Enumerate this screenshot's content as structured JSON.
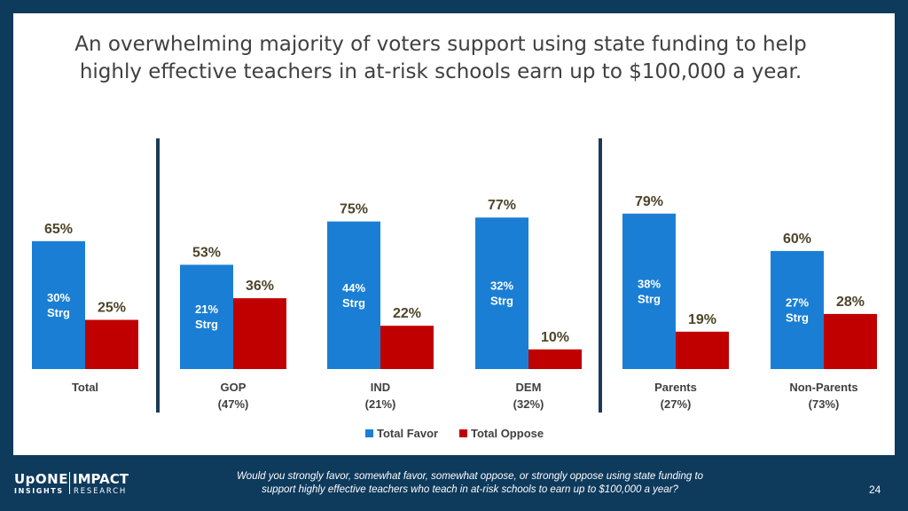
{
  "header": {
    "title_line1": "An overwhelming majority of voters support using state funding to help",
    "title_line2": "highly effective teachers in at-risk schools earn up to $100,000 a year."
  },
  "footer": {
    "question_line1": "Would you strongly favor, somewhat favor, somewhat oppose, or strongly oppose using state funding to",
    "question_line2": "support highly effective teachers who teach in at-risk schools to earn up to $100,000 a year?",
    "page_number": "24",
    "logo_left_main": "UpONE",
    "logo_left_sub": "INSIGHTS",
    "logo_right_main": "IMPACT",
    "logo_right_sub": "RESEARCH"
  },
  "colors": {
    "favor": "#1a7fd4",
    "oppose": "#c00000",
    "divider": "#1b3a57",
    "value_text": "#4d4429",
    "category_text": "#404040"
  },
  "chart_data": {
    "type": "bar",
    "categories": [
      {
        "label": "Total",
        "sublabel": ""
      },
      {
        "label": "GOP",
        "sublabel": "(47%)"
      },
      {
        "label": "IND",
        "sublabel": "(21%)"
      },
      {
        "label": "DEM",
        "sublabel": "(32%)"
      },
      {
        "label": "Parents",
        "sublabel": "(27%)"
      },
      {
        "label": "Non-Parents",
        "sublabel": "(73%)"
      }
    ],
    "series": [
      {
        "name": "Total Favor",
        "values": [
          65,
          53,
          75,
          77,
          79,
          60
        ],
        "labels": [
          "65%",
          "53%",
          "75%",
          "77%",
          "79%",
          "60%"
        ]
      },
      {
        "name": "Total Oppose",
        "values": [
          25,
          36,
          22,
          10,
          19,
          28
        ],
        "labels": [
          "25%",
          "36%",
          "22%",
          "10%",
          "19%",
          "28%"
        ]
      }
    ],
    "strong_favor_labels": [
      "30%",
      "21%",
      "44%",
      "32%",
      "38%",
      "27%"
    ],
    "strong_suffix": "Strg",
    "ylim": [
      0,
      100
    ],
    "legend_position": "bottom",
    "group_dividers_after": [
      0,
      3
    ],
    "grid": false
  }
}
